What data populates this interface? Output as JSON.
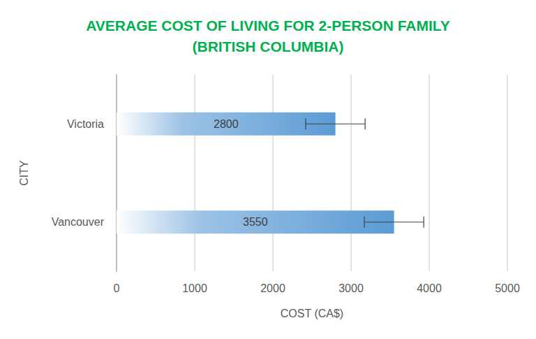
{
  "chart_data": {
    "type": "bar",
    "title": "AVERAGE COST OF LIVING FOR 2-PERSON FAMILY\n(BRITISH COLUMBIA)",
    "orientation": "horizontal",
    "categories": [
      "Victoria",
      "Vancouver"
    ],
    "values": [
      2800,
      3550
    ],
    "errors": [
      380,
      380
    ],
    "color": "#5b9bd5",
    "xlabel": "COST (CA$)",
    "ylabel": "CITY",
    "xlim": [
      0,
      5000
    ],
    "xticks": [
      0,
      1000,
      2000,
      3000,
      4000,
      5000
    ],
    "grid": true,
    "data_labels": true
  }
}
